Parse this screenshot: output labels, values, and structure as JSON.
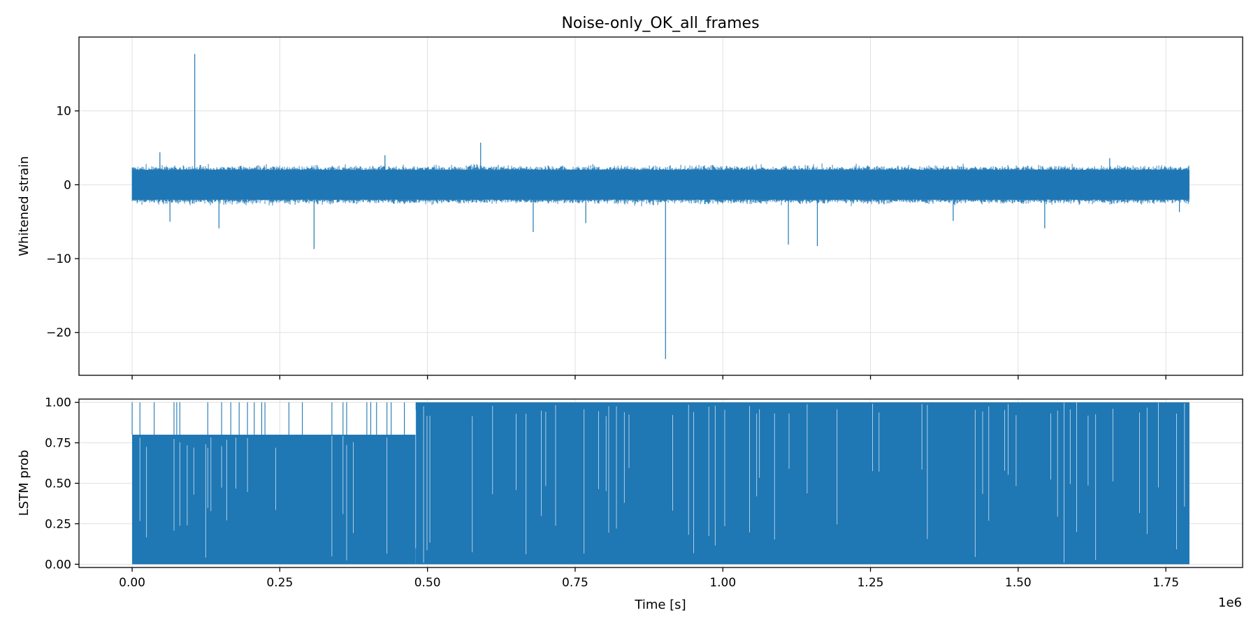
{
  "chart_data": [
    {
      "type": "line",
      "title": "Noise-only_OK_all_frames",
      "xlabel": "",
      "ylabel": "Whitened strain",
      "xlim": [
        -90000,
        1880000
      ],
      "ylim": [
        -25.8,
        20.0
      ],
      "x_ticks": [
        0,
        250000,
        500000,
        750000,
        1000000,
        1250000,
        1500000,
        1750000
      ],
      "y_ticks": [
        10,
        0,
        -10,
        -20
      ],
      "y_tick_labels": [
        "10",
        "0",
        "−10",
        "−20"
      ],
      "grid": true,
      "color": "#1f77b4",
      "series": [
        {
          "x_range": [
            0,
            1790000
          ],
          "baseline_band": [
            -2.0,
            2.0
          ],
          "spikes": [
            {
              "x": 106000,
              "y": 17.7
            },
            {
              "x": 47000,
              "y": 4.4
            },
            {
              "x": 64000,
              "y": -5.0
            },
            {
              "x": 147000,
              "y": -5.9
            },
            {
              "x": 308000,
              "y": -8.7
            },
            {
              "x": 428000,
              "y": 4.0
            },
            {
              "x": 590000,
              "y": 5.7
            },
            {
              "x": 679000,
              "y": -6.4
            },
            {
              "x": 768000,
              "y": -5.2
            },
            {
              "x": 903000,
              "y": -23.6
            },
            {
              "x": 1111000,
              "y": -8.1
            },
            {
              "x": 1160000,
              "y": -8.3
            },
            {
              "x": 1390000,
              "y": -4.9
            },
            {
              "x": 1545000,
              "y": -5.9
            },
            {
              "x": 1655000,
              "y": 3.6
            },
            {
              "x": 1773000,
              "y": -3.7
            }
          ]
        }
      ]
    },
    {
      "type": "line",
      "title": "",
      "xlabel": "Time [s]",
      "ylabel": "LSTM prob",
      "x_offset_label": "1e6",
      "xlim": [
        -90000,
        1880000
      ],
      "ylim": [
        -0.02,
        1.02
      ],
      "x_ticks": [
        0,
        250000,
        500000,
        750000,
        1000000,
        1250000,
        1500000,
        1750000
      ],
      "x_tick_labels": [
        "0.00",
        "0.25",
        "0.50",
        "0.75",
        "1.00",
        "1.25",
        "1.50",
        "1.75"
      ],
      "y_ticks": [
        1.0,
        0.75,
        0.5,
        0.25,
        0.0
      ],
      "y_tick_labels": [
        "1.00",
        "0.75",
        "0.50",
        "0.25",
        "0.00"
      ],
      "grid": true,
      "color": "#1f77b4",
      "series": [
        {
          "x_range": [
            0,
            1790000
          ],
          "segments": [
            {
              "x_start": 0,
              "x_end": 480000,
              "low": 0.0,
              "high": 0.8,
              "spike_high": 1.0
            },
            {
              "x_start": 480000,
              "x_end": 1790000,
              "low": 0.0,
              "high": 1.0
            }
          ]
        }
      ]
    }
  ]
}
